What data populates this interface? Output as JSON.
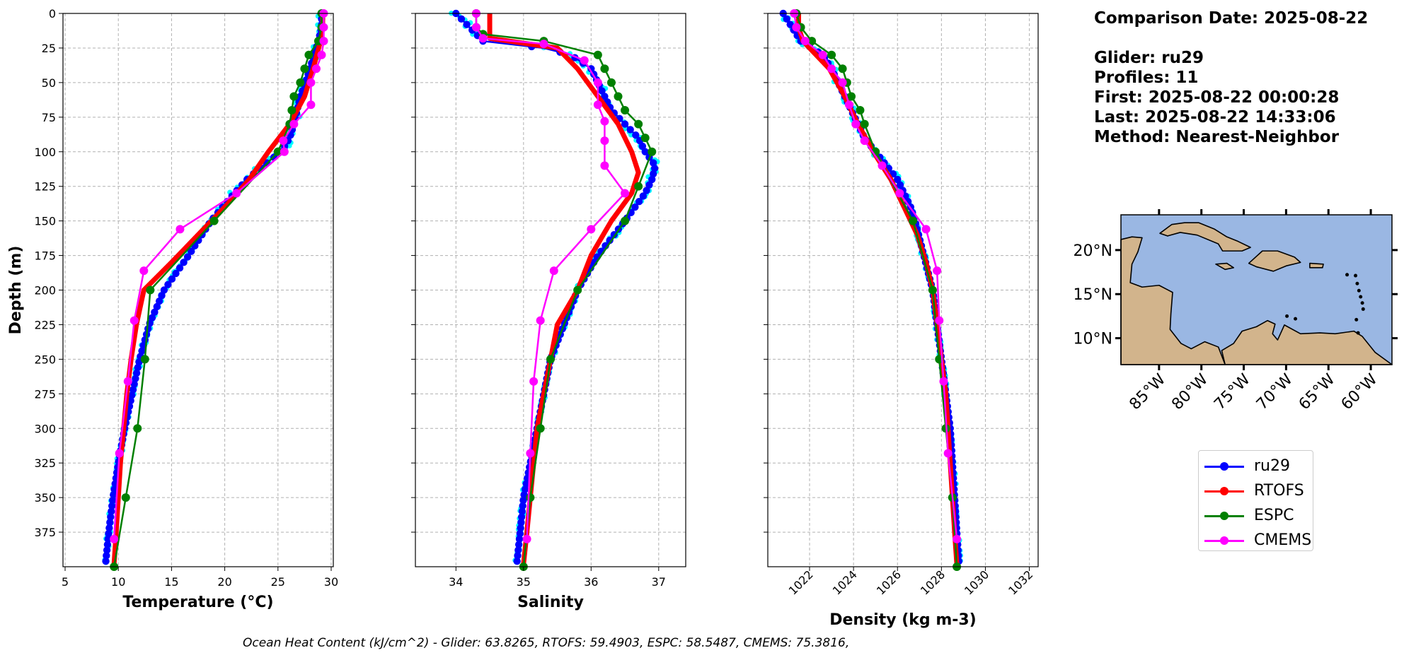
{
  "info": {
    "comparison_date": "Comparison Date: 2025-08-22",
    "glider": "Glider: ru29",
    "profiles": "Profiles: 11",
    "first": "First: 2025-08-22 00:00:28",
    "last": "Last: 2025-08-22 14:33:06",
    "method": "Method: Nearest-Neighbor"
  },
  "footer": "Ocean Heat Content (kJ/cm^2) - Glider: 63.8265,  RTOFS: 59.4903,  ESPC: 58.5487,  CMEMS: 75.3816,",
  "colors": {
    "glider": "#0000ff",
    "glider_scatter": "#00ffff",
    "rtofs": "#ff0000",
    "espc": "#008000",
    "cmems": "#ff00ff",
    "land": "#d2b48c",
    "ocean": "#9ab7e3"
  },
  "legend": [
    {
      "label": "ru29",
      "color": "#0000ff"
    },
    {
      "label": "RTOFS",
      "color": "#ff0000"
    },
    {
      "label": "ESPC",
      "color": "#008000"
    },
    {
      "label": "CMEMS",
      "color": "#ff00ff"
    }
  ],
  "map": {
    "lon_ticks": [
      "85°W",
      "80°W",
      "75°W",
      "70°W",
      "65°W",
      "60°W"
    ],
    "lat_ticks": [
      "20°N",
      "15°N",
      "10°N"
    ]
  },
  "chart_data": [
    {
      "type": "line",
      "title": "",
      "xlabel": "Temperature (°C)",
      "ylabel": "Depth (m)",
      "xlim": [
        4.8,
        30.2
      ],
      "ylim": [
        400,
        0
      ],
      "xticks": [
        5,
        10,
        15,
        20,
        25,
        30
      ],
      "yticks": [
        0,
        25,
        50,
        75,
        100,
        125,
        150,
        175,
        200,
        225,
        250,
        275,
        300,
        325,
        350,
        375
      ],
      "grid": true,
      "series": [
        {
          "name": "ru29",
          "depth": [
            0,
            10,
            20,
            30,
            40,
            50,
            60,
            70,
            80,
            90,
            100,
            110,
            120,
            130,
            140,
            150,
            175,
            200,
            225,
            250,
            275,
            300,
            325,
            350,
            375,
            398
          ],
          "values": [
            29.1,
            29.1,
            28.8,
            28.4,
            28.0,
            27.6,
            27.1,
            26.8,
            26.5,
            26.1,
            25.3,
            23.6,
            22.1,
            20.9,
            19.8,
            18.7,
            16.6,
            14.3,
            12.9,
            12.0,
            11.3,
            10.6,
            10.0,
            9.5,
            9.1,
            8.8
          ]
        },
        {
          "name": "RTOFS",
          "depth": [
            0,
            10,
            20,
            40,
            60,
            80,
            100,
            120,
            140,
            160,
            180,
            200,
            225,
            250,
            275,
            300,
            325,
            350,
            375,
            398
          ],
          "values": [
            29.2,
            29.2,
            29.0,
            28.3,
            27.5,
            26.1,
            24.1,
            22.3,
            20.0,
            17.5,
            15.0,
            12.4,
            11.7,
            11.2,
            10.8,
            10.5,
            10.2,
            10.0,
            9.8,
            9.6
          ]
        },
        {
          "name": "ESPC",
          "depth": [
            0,
            10,
            20,
            30,
            40,
            50,
            60,
            70,
            80,
            100,
            150,
            200,
            250,
            300,
            350,
            400
          ],
          "values": [
            29.1,
            29.1,
            28.8,
            27.9,
            27.5,
            27.1,
            26.5,
            26.3,
            26.1,
            25.0,
            19.0,
            13.0,
            12.5,
            11.8,
            10.7,
            9.6
          ]
        },
        {
          "name": "CMEMS",
          "depth": [
            0,
            10,
            20,
            30,
            40,
            50,
            66,
            80,
            92,
            100,
            130,
            156,
            186,
            222,
            266,
            318,
            380
          ],
          "values": [
            29.3,
            29.3,
            29.3,
            29.1,
            28.6,
            28.1,
            28.1,
            26.5,
            25.5,
            25.6,
            21.1,
            15.8,
            12.4,
            11.5,
            10.9,
            10.1,
            9.6
          ]
        }
      ]
    },
    {
      "type": "line",
      "title": "",
      "xlabel": "Salinity",
      "ylabel": "",
      "xlim": [
        33.4,
        37.4
      ],
      "ylim": [
        400,
        0
      ],
      "xticks": [
        34,
        35,
        36,
        37
      ],
      "grid": true,
      "series": [
        {
          "name": "ru29",
          "depth": [
            0,
            10,
            15,
            20,
            25,
            30,
            40,
            50,
            60,
            70,
            80,
            90,
            100,
            110,
            120,
            130,
            140,
            150,
            175,
            200,
            225,
            250,
            275,
            300,
            325,
            350,
            375,
            398
          ],
          "values": [
            34.0,
            34.2,
            34.3,
            34.4,
            35.3,
            35.7,
            36.0,
            36.1,
            36.2,
            36.3,
            36.5,
            36.7,
            36.8,
            36.95,
            36.9,
            36.8,
            36.65,
            36.5,
            36.1,
            35.8,
            35.6,
            35.4,
            35.3,
            35.2,
            35.1,
            35.0,
            34.95,
            34.9
          ]
        },
        {
          "name": "RTOFS",
          "depth": [
            0,
            10,
            18,
            25,
            40,
            60,
            80,
            100,
            115,
            130,
            150,
            175,
            200,
            225,
            250,
            275,
            300,
            325,
            350,
            375,
            398
          ],
          "values": [
            34.5,
            34.5,
            34.5,
            35.5,
            35.8,
            36.1,
            36.4,
            36.6,
            36.7,
            36.6,
            36.3,
            36.0,
            35.8,
            35.5,
            35.4,
            35.3,
            35.2,
            35.15,
            35.1,
            35.05,
            35.0
          ]
        },
        {
          "name": "ESPC",
          "depth": [
            0,
            10,
            15,
            20,
            30,
            40,
            50,
            60,
            70,
            80,
            90,
            100,
            125,
            150,
            200,
            250,
            300,
            350,
            400
          ],
          "values": [
            34.3,
            34.3,
            34.4,
            35.3,
            36.1,
            36.2,
            36.3,
            36.4,
            36.5,
            36.7,
            36.8,
            36.9,
            36.7,
            36.5,
            35.8,
            35.4,
            35.25,
            35.1,
            35.0
          ]
        },
        {
          "name": "CMEMS",
          "depth": [
            0,
            10,
            18,
            22,
            34,
            50,
            66,
            78,
            92,
            110,
            130,
            156,
            186,
            222,
            266,
            318,
            380
          ],
          "values": [
            34.3,
            34.3,
            34.4,
            35.3,
            35.9,
            36.1,
            36.1,
            36.2,
            36.2,
            36.2,
            36.5,
            36.0,
            35.45,
            35.25,
            35.15,
            35.1,
            35.05
          ]
        }
      ]
    },
    {
      "type": "line",
      "title": "",
      "xlabel": "Density (kg m-3)",
      "ylabel": "",
      "xlim": [
        1020.1,
        1032.4
      ],
      "ylim": [
        400,
        0
      ],
      "xticks": [
        1022,
        1024,
        1026,
        1028,
        1030,
        1032
      ],
      "grid": true,
      "series": [
        {
          "name": "ru29",
          "depth": [
            0,
            10,
            20,
            30,
            40,
            50,
            60,
            70,
            80,
            90,
            100,
            110,
            120,
            130,
            140,
            150,
            175,
            200,
            225,
            250,
            275,
            300,
            325,
            350,
            375,
            398
          ],
          "values": [
            1020.8,
            1021.2,
            1021.6,
            1022.6,
            1023.0,
            1023.3,
            1023.6,
            1023.9,
            1024.2,
            1024.5,
            1025.0,
            1025.5,
            1026.0,
            1026.3,
            1026.6,
            1026.8,
            1027.2,
            1027.6,
            1027.8,
            1028.0,
            1028.2,
            1028.4,
            1028.5,
            1028.6,
            1028.7,
            1028.8
          ]
        },
        {
          "name": "RTOFS",
          "depth": [
            0,
            10,
            20,
            40,
            60,
            80,
            100,
            120,
            140,
            160,
            180,
            200,
            225,
            250,
            275,
            300,
            325,
            350,
            375,
            398
          ],
          "values": [
            1021.5,
            1021.5,
            1021.7,
            1022.9,
            1023.6,
            1024.2,
            1024.9,
            1025.7,
            1026.3,
            1026.9,
            1027.3,
            1027.6,
            1027.8,
            1028.0,
            1028.2,
            1028.3,
            1028.4,
            1028.5,
            1028.6,
            1028.7
          ]
        },
        {
          "name": "ESPC",
          "depth": [
            0,
            10,
            20,
            30,
            40,
            50,
            60,
            70,
            80,
            100,
            150,
            200,
            250,
            300,
            350,
            400
          ],
          "values": [
            1021.4,
            1021.6,
            1022.1,
            1023.0,
            1023.5,
            1023.7,
            1023.9,
            1024.3,
            1024.5,
            1025.0,
            1026.7,
            1027.6,
            1027.9,
            1028.2,
            1028.5,
            1028.7
          ]
        },
        {
          "name": "CMEMS",
          "depth": [
            0,
            10,
            20,
            30,
            40,
            50,
            66,
            80,
            92,
            110,
            130,
            156,
            186,
            222,
            266,
            318,
            380
          ],
          "values": [
            1021.3,
            1021.4,
            1021.8,
            1022.6,
            1023.0,
            1023.5,
            1023.8,
            1024.1,
            1024.5,
            1025.3,
            1026.1,
            1027.3,
            1027.8,
            1027.9,
            1028.1,
            1028.3,
            1028.7
          ]
        }
      ]
    }
  ]
}
